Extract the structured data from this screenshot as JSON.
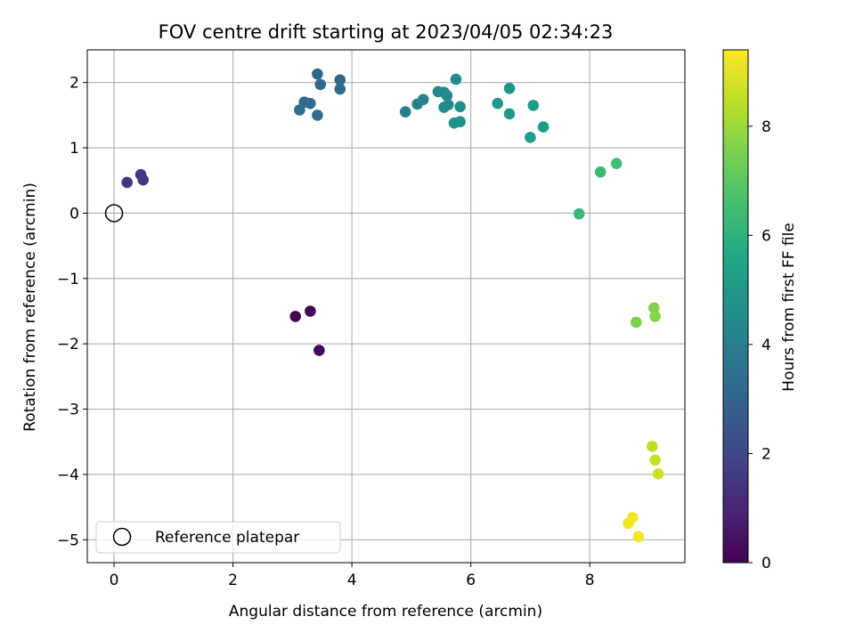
{
  "chart_data": {
    "type": "scatter",
    "title": "FOV centre drift starting at 2023/04/05 02:34:23",
    "xlabel": "Angular distance from reference (arcmin)",
    "ylabel": "Rotation from reference (arcmin)",
    "xlim": [
      -0.45,
      9.6
    ],
    "ylim": [
      -5.35,
      2.5
    ],
    "xticks": [
      0,
      2,
      4,
      6,
      8
    ],
    "yticks": [
      2,
      1,
      0,
      -1,
      -2,
      -3,
      -4,
      -5
    ],
    "ytick_labels": [
      "2",
      "1",
      "0",
      "−1",
      "−2",
      "−3",
      "−4",
      "−5"
    ],
    "grid": true,
    "colormap": "viridis",
    "colormap_stops": [
      "#440154",
      "#482475",
      "#414487",
      "#355f8d",
      "#2a788e",
      "#21918c",
      "#22a884",
      "#44bf70",
      "#7ad151",
      "#bddf26",
      "#fde725"
    ],
    "colorbar": {
      "label": "Hours from first FF file",
      "range": [
        0,
        9.4
      ],
      "ticks": [
        0,
        2,
        4,
        6,
        8
      ]
    },
    "legend": {
      "position": "lower-left",
      "entries": [
        {
          "label": "Reference platepar",
          "marker": "hollow-circle"
        }
      ]
    },
    "reference_point": {
      "x": 0,
      "y": 0
    },
    "points": [
      {
        "x": 3.05,
        "y": -1.58,
        "h": 0.05
      },
      {
        "x": 3.3,
        "y": -1.5,
        "h": 0.1
      },
      {
        "x": 3.45,
        "y": -2.1,
        "h": 0.15
      },
      {
        "x": 0.22,
        "y": 0.47,
        "h": 1.4
      },
      {
        "x": 0.45,
        "y": 0.59,
        "h": 1.5
      },
      {
        "x": 0.49,
        "y": 0.51,
        "h": 1.55
      },
      {
        "x": 3.42,
        "y": 2.13,
        "h": 3.1
      },
      {
        "x": 3.47,
        "y": 1.97,
        "h": 3.15
      },
      {
        "x": 3.8,
        "y": 2.04,
        "h": 3.2
      },
      {
        "x": 3.8,
        "y": 1.9,
        "h": 3.25
      },
      {
        "x": 3.2,
        "y": 1.7,
        "h": 3.3
      },
      {
        "x": 3.3,
        "y": 1.68,
        "h": 3.35
      },
      {
        "x": 3.12,
        "y": 1.58,
        "h": 3.4
      },
      {
        "x": 3.42,
        "y": 1.5,
        "h": 3.45
      },
      {
        "x": 4.9,
        "y": 1.55,
        "h": 4.0
      },
      {
        "x": 5.1,
        "y": 1.67,
        "h": 4.1
      },
      {
        "x": 5.2,
        "y": 1.74,
        "h": 4.2
      },
      {
        "x": 5.45,
        "y": 1.86,
        "h": 4.3
      },
      {
        "x": 5.55,
        "y": 1.85,
        "h": 4.35
      },
      {
        "x": 5.55,
        "y": 1.62,
        "h": 4.4
      },
      {
        "x": 5.62,
        "y": 1.66,
        "h": 4.45
      },
      {
        "x": 5.6,
        "y": 1.8,
        "h": 4.5
      },
      {
        "x": 5.75,
        "y": 2.05,
        "h": 4.55
      },
      {
        "x": 5.82,
        "y": 1.63,
        "h": 4.6
      },
      {
        "x": 5.72,
        "y": 1.38,
        "h": 4.65
      },
      {
        "x": 5.82,
        "y": 1.4,
        "h": 4.7
      },
      {
        "x": 6.45,
        "y": 1.68,
        "h": 4.9
      },
      {
        "x": 6.65,
        "y": 1.91,
        "h": 4.95
      },
      {
        "x": 6.65,
        "y": 1.52,
        "h": 5.0
      },
      {
        "x": 7.05,
        "y": 1.65,
        "h": 5.1
      },
      {
        "x": 7.0,
        "y": 1.16,
        "h": 5.15
      },
      {
        "x": 7.22,
        "y": 1.32,
        "h": 5.2
      },
      {
        "x": 7.82,
        "y": -0.01,
        "h": 6.3
      },
      {
        "x": 8.18,
        "y": 0.63,
        "h": 6.4
      },
      {
        "x": 8.45,
        "y": 0.76,
        "h": 6.5
      },
      {
        "x": 8.78,
        "y": -1.67,
        "h": 7.5
      },
      {
        "x": 9.08,
        "y": -1.45,
        "h": 7.6
      },
      {
        "x": 9.1,
        "y": -1.58,
        "h": 7.65
      },
      {
        "x": 9.05,
        "y": -3.57,
        "h": 8.5
      },
      {
        "x": 9.1,
        "y": -3.78,
        "h": 8.6
      },
      {
        "x": 9.15,
        "y": -3.99,
        "h": 8.7
      },
      {
        "x": 8.72,
        "y": -4.66,
        "h": 9.2
      },
      {
        "x": 8.65,
        "y": -4.75,
        "h": 9.25
      },
      {
        "x": 8.82,
        "y": -4.95,
        "h": 9.3
      }
    ]
  }
}
